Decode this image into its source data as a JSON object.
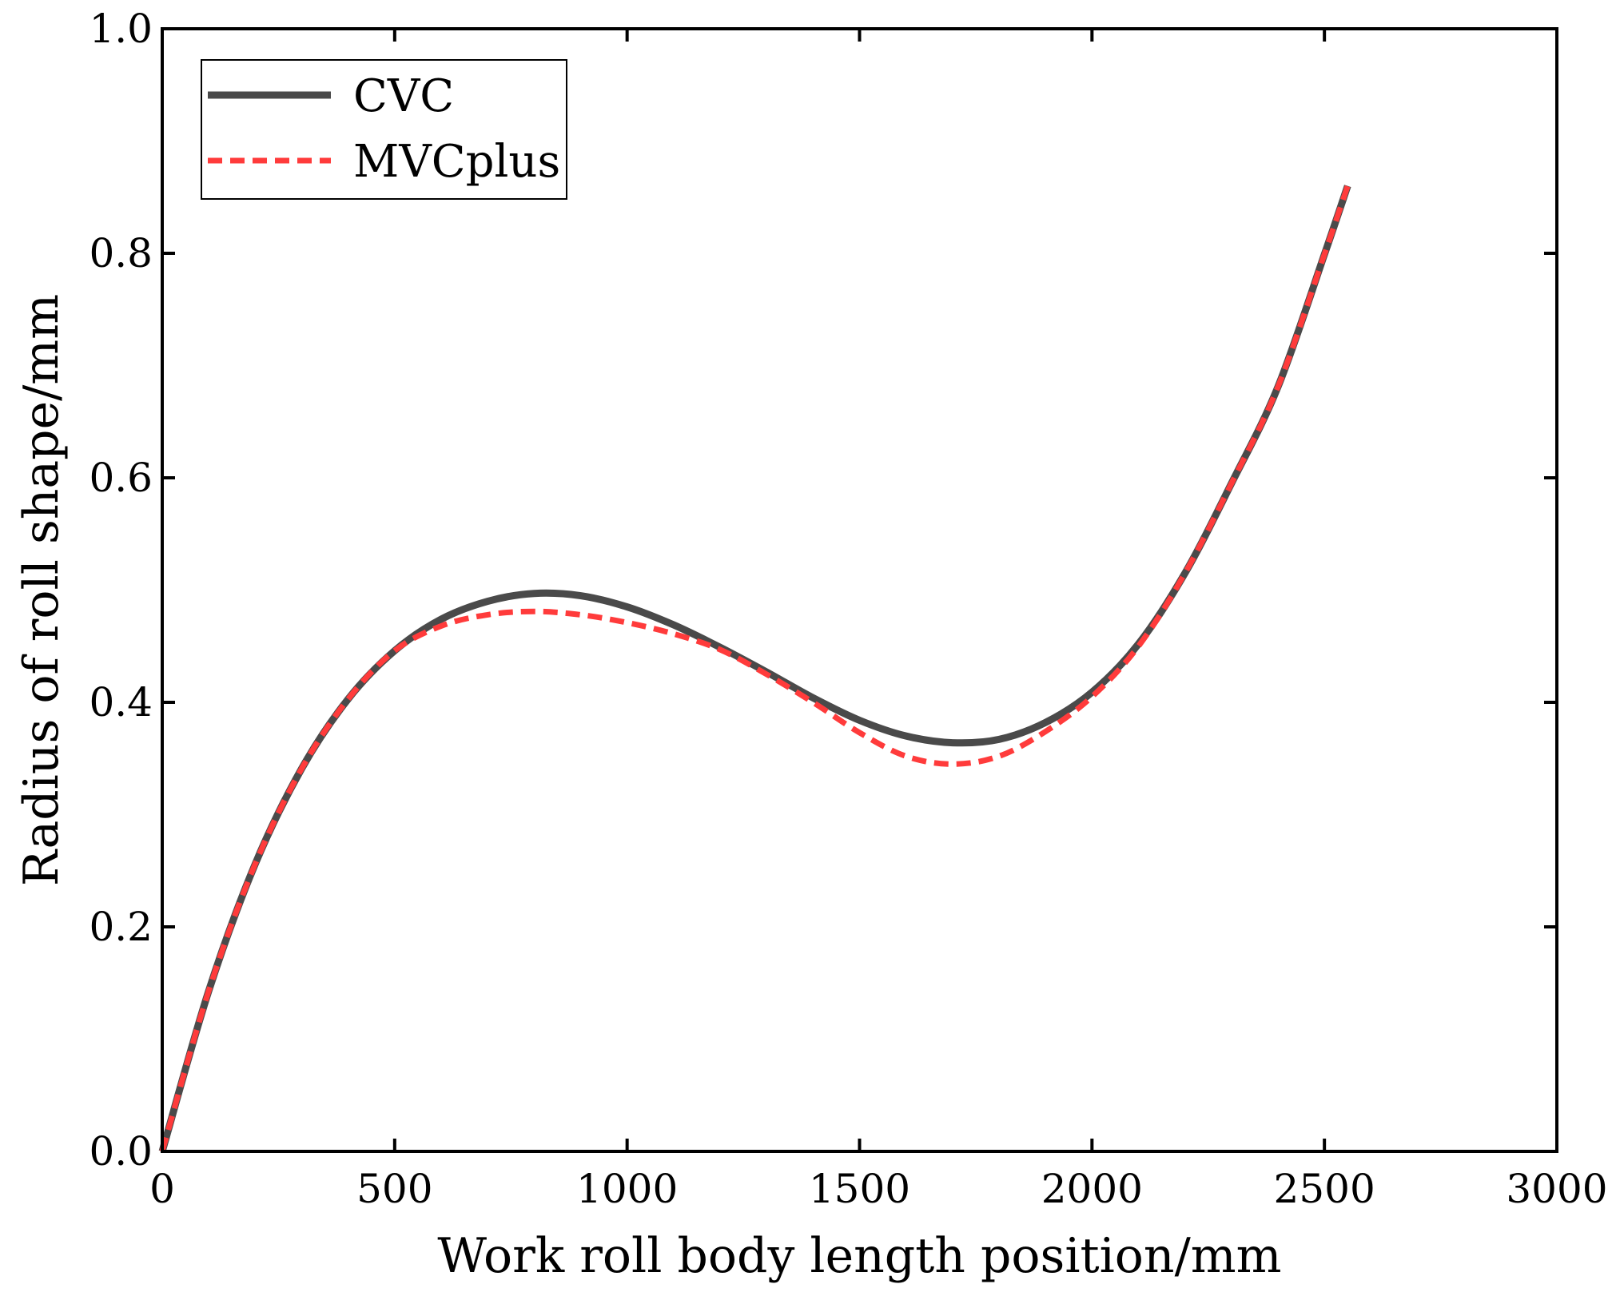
{
  "chart_data": {
    "type": "line",
    "title": "",
    "xlabel": "Work roll body length position/mm",
    "ylabel": "Radius of roll shape/mm",
    "xlim": [
      0,
      3000
    ],
    "ylim": [
      0.0,
      1.0
    ],
    "xticks": [
      0,
      500,
      1000,
      1500,
      2000,
      2500,
      3000
    ],
    "xtick_labels": [
      "0",
      "500",
      "1000",
      "1500",
      "2000",
      "2500",
      "3000"
    ],
    "yticks": [
      0.0,
      0.2,
      0.4,
      0.6,
      0.8,
      1.0
    ],
    "ytick_labels": [
      "0.0",
      "0.2",
      "0.4",
      "0.6",
      "0.8",
      "1.0"
    ],
    "grid": false,
    "legend_position": "top-left",
    "series": [
      {
        "name": "CVC",
        "color": "#4a4a4a",
        "style": "solid",
        "x": [
          0,
          100,
          200,
          300,
          400,
          500,
          600,
          700,
          800,
          900,
          1000,
          1100,
          1200,
          1300,
          1400,
          1500,
          1600,
          1700,
          1800,
          1900,
          2000,
          2100,
          2200,
          2300,
          2400,
          2500,
          2550
        ],
        "y": [
          0.0,
          0.143,
          0.256,
          0.341,
          0.403,
          0.446,
          0.474,
          0.49,
          0.497,
          0.495,
          0.485,
          0.469,
          0.449,
          0.427,
          0.404,
          0.384,
          0.37,
          0.364,
          0.367,
          0.382,
          0.409,
          0.452,
          0.515,
          0.595,
          0.681,
          0.799,
          0.86
        ]
      },
      {
        "name": "MVCplus",
        "color": "#ff3b3b",
        "style": "dashed",
        "x": [
          0,
          100,
          200,
          300,
          400,
          500,
          600,
          700,
          800,
          900,
          1000,
          1100,
          1200,
          1300,
          1400,
          1500,
          1600,
          1700,
          1800,
          1900,
          2000,
          2100,
          2200,
          2300,
          2400,
          2500,
          2550
        ],
        "y": [
          0.0,
          0.143,
          0.256,
          0.341,
          0.403,
          0.446,
          0.468,
          0.478,
          0.481,
          0.478,
          0.471,
          0.461,
          0.447,
          0.425,
          0.4,
          0.373,
          0.352,
          0.345,
          0.352,
          0.374,
          0.405,
          0.45,
          0.515,
          0.595,
          0.681,
          0.799,
          0.86
        ]
      }
    ]
  }
}
